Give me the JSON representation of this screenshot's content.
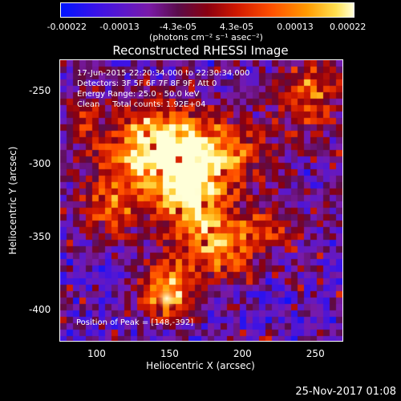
{
  "colorbar": {
    "ticks": [
      "-0.00022",
      "-0.00013",
      "-4.3e-05",
      "4.3e-05",
      "0.00013",
      "0.00022"
    ],
    "unit": "(photons cm⁻² s⁻¹ asec⁻²)"
  },
  "chart_data": {
    "type": "heatmap",
    "title": "Reconstructed RHESSI Image",
    "xlabel": "Heliocentric X (arcsec)",
    "ylabel": "Heliocentric Y (arcsec)",
    "xlim": [
      75,
      268
    ],
    "ylim": [
      -421,
      -229
    ],
    "x_ticks": [
      100,
      150,
      200,
      250
    ],
    "y_ticks": [
      -250,
      -300,
      -350,
      -400
    ],
    "annotations": [
      "17-Jun-2015 22:20:34.000 to 22:30:34.000",
      "Detectors: 3F 5F 6F 7F 8F 9F, Att 0",
      "Energy Range: 25.0 - 50.0 keV",
      "Clean     Total counts: 1.92E+04"
    ],
    "peak_label": "Position of Peak = [148,-392]",
    "peak": [
      148,
      -392
    ],
    "value_range": [
      -0.00022,
      0.00022
    ],
    "colors": {
      "low": "#0014ff",
      "mid": "#8a0010",
      "high": "#ffffd8"
    }
  },
  "footer": {
    "date": "25-Nov-2017 01:08"
  }
}
